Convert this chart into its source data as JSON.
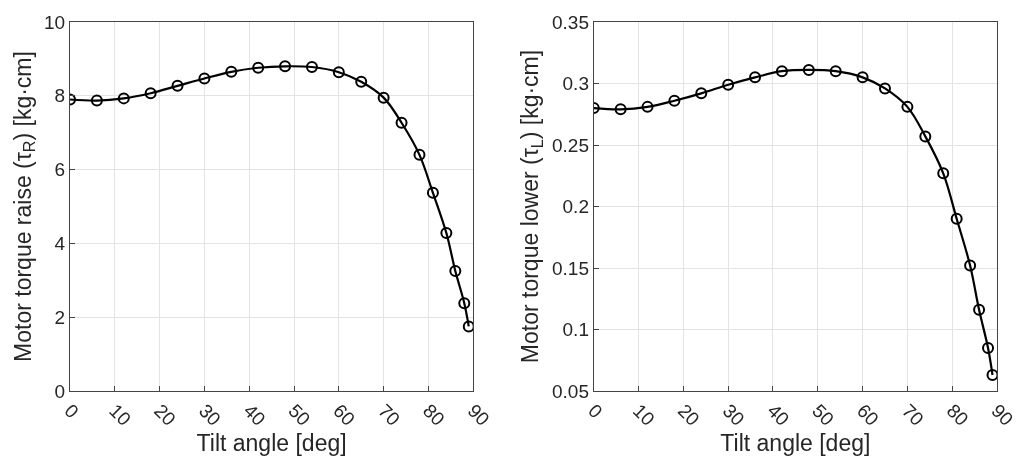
{
  "chart_data": [
    {
      "type": "line",
      "xlabel": "Tilt angle [deg]",
      "ylabel": "Motor torque raise (τ$_{R}$) [kg·cm]",
      "x": [
        0,
        6,
        12,
        18,
        24,
        30,
        36,
        42,
        48,
        54,
        60,
        65,
        70,
        74,
        78,
        81,
        84,
        86,
        88,
        89
      ],
      "series": [
        {
          "color": "#000000",
          "values": [
            7.9,
            7.87,
            7.93,
            8.07,
            8.27,
            8.47,
            8.65,
            8.76,
            8.8,
            8.78,
            8.64,
            8.38,
            7.95,
            7.27,
            6.4,
            5.37,
            4.28,
            3.25,
            2.38,
            1.75
          ]
        }
      ],
      "xlim": [
        0,
        90
      ],
      "xticks": [
        0,
        10,
        20,
        30,
        40,
        50,
        60,
        70,
        80,
        90
      ],
      "ylim": [
        0,
        10
      ],
      "yticks": [
        0,
        2,
        4,
        6,
        8,
        10
      ],
      "grid": true,
      "marker": "circle",
      "line_style": "solid"
    },
    {
      "type": "line",
      "xlabel": "Tilt angle [deg]",
      "ylabel": "Motor torque lower (τ$_{L}$) [kg·cm]",
      "x": [
        0,
        6,
        12,
        18,
        24,
        30,
        36,
        42,
        48,
        54,
        60,
        65,
        70,
        74,
        78,
        81,
        84,
        86,
        88,
        89
      ],
      "series": [
        {
          "color": "#000000",
          "values": [
            0.28,
            0.279,
            0.281,
            0.286,
            0.292,
            0.299,
            0.305,
            0.31,
            0.311,
            0.31,
            0.305,
            0.296,
            0.281,
            0.257,
            0.227,
            0.19,
            0.152,
            0.116,
            0.085,
            0.063
          ]
        }
      ],
      "xlim": [
        0,
        90
      ],
      "xticks": [
        0,
        10,
        20,
        30,
        40,
        50,
        60,
        70,
        80,
        90
      ],
      "ylim": [
        0.05,
        0.35
      ],
      "yticks": [
        0.05,
        0.1,
        0.15,
        0.2,
        0.25,
        0.3,
        0.35
      ],
      "grid": true,
      "marker": "circle",
      "line_style": "solid"
    }
  ]
}
